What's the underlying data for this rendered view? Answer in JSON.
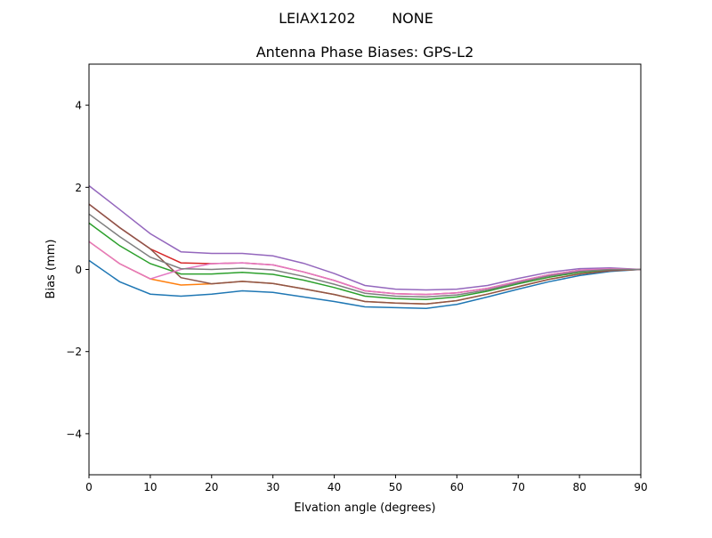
{
  "chart_data": {
    "type": "line",
    "suptitle": "LEIAX1202        NONE",
    "title": "Antenna Phase Biases: GPS-L2",
    "xlabel": "Elvation angle (degrees)",
    "ylabel": "Bias (mm)",
    "xlim": [
      0,
      90
    ],
    "ylim": [
      -5,
      5
    ],
    "xticks": [
      0,
      10,
      20,
      30,
      40,
      50,
      60,
      70,
      80,
      90
    ],
    "yticks": [
      -4,
      -2,
      0,
      2,
      4
    ],
    "ytick_labels": [
      "−4",
      "−2",
      "0",
      "2",
      "4"
    ],
    "grid": false,
    "legend": "none",
    "colors": [
      "#1f77b4",
      "#ff7f0e",
      "#2ca02c",
      "#d62728",
      "#9467bd",
      "#8c564b",
      "#e377c2",
      "#7f7f7f",
      "#bcbd22",
      "#17becf"
    ],
    "x": [
      0,
      5,
      10,
      15,
      20,
      25,
      30,
      35,
      40,
      45,
      50,
      55,
      60,
      65,
      70,
      75,
      80,
      85,
      90
    ],
    "series": [
      {
        "values": [
          0.22,
          -0.3,
          -0.6,
          -0.65,
          -0.6,
          -0.52,
          -0.56,
          -0.67,
          -0.78,
          -0.91,
          -0.93,
          -0.95,
          -0.85,
          -0.67,
          -0.48,
          -0.3,
          -0.15,
          -0.05,
          0
        ]
      },
      {
        "values": [
          0.68,
          0.14,
          -0.23,
          -0.38,
          -0.35,
          -0.29,
          -0.34,
          -0.47,
          -0.61,
          -0.78,
          -0.82,
          -0.84,
          -0.76,
          -0.6,
          -0.42,
          -0.24,
          -0.11,
          -0.03,
          0
        ]
      },
      {
        "values": [
          1.13,
          0.58,
          0.14,
          -0.11,
          -0.11,
          -0.07,
          -0.12,
          -0.26,
          -0.44,
          -0.65,
          -0.71,
          -0.73,
          -0.67,
          -0.53,
          -0.35,
          -0.19,
          -0.07,
          -0.01,
          0
        ]
      },
      {
        "values": [
          1.59,
          1.02,
          0.5,
          0.16,
          0.14,
          0.16,
          0.11,
          -0.06,
          -0.27,
          -0.52,
          -0.59,
          -0.61,
          -0.57,
          -0.46,
          -0.29,
          -0.13,
          -0.02,
          0.02,
          0
        ]
      },
      {
        "values": [
          2.04,
          1.46,
          0.87,
          0.43,
          0.39,
          0.39,
          0.33,
          0.15,
          -0.1,
          -0.39,
          -0.48,
          -0.5,
          -0.48,
          -0.39,
          -0.22,
          -0.07,
          0.02,
          0.04,
          0
        ]
      },
      {
        "values": [
          1.59,
          1.02,
          0.5,
          -0.2,
          -0.35,
          -0.29,
          -0.34,
          -0.47,
          -0.61,
          -0.78,
          -0.82,
          -0.84,
          -0.76,
          -0.6,
          -0.42,
          -0.24,
          -0.11,
          -0.03,
          0
        ]
      },
      {
        "values": [
          0.68,
          0.14,
          -0.23,
          0.0,
          0.14,
          0.16,
          0.11,
          -0.06,
          -0.27,
          -0.52,
          -0.59,
          -0.61,
          -0.57,
          -0.46,
          -0.29,
          -0.13,
          -0.02,
          0.02,
          0
        ]
      },
      {
        "values": [
          1.35,
          0.8,
          0.3,
          0.02,
          0.0,
          0.03,
          -0.01,
          -0.17,
          -0.36,
          -0.58,
          -0.65,
          -0.67,
          -0.62,
          -0.5,
          -0.32,
          -0.16,
          -0.05,
          0.0,
          0
        ]
      }
    ]
  }
}
